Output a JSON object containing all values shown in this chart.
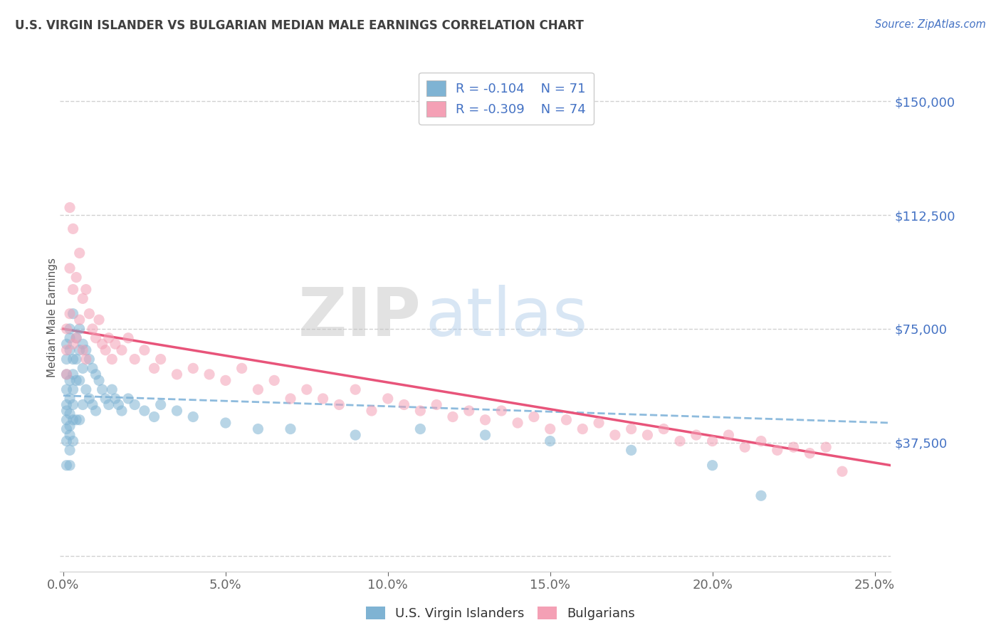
{
  "title": "U.S. VIRGIN ISLANDER VS BULGARIAN MEDIAN MALE EARNINGS CORRELATION CHART",
  "source": "Source: ZipAtlas.com",
  "ylabel": "Median Male Earnings",
  "xlim": [
    -0.001,
    0.255
  ],
  "ylim": [
    -5000,
    162500
  ],
  "xtick_labels": [
    "0.0%",
    "5.0%",
    "10.0%",
    "15.0%",
    "20.0%",
    "25.0%"
  ],
  "xtick_values": [
    0.0,
    0.05,
    0.1,
    0.15,
    0.2,
    0.25
  ],
  "ytick_values": [
    0,
    37500,
    75000,
    112500,
    150000
  ],
  "ytick_labels": [
    "",
    "$37,500",
    "$75,000",
    "$112,500",
    "$150,000"
  ],
  "color_blue": "#7fb3d3",
  "color_pink": "#f4a0b5",
  "color_blue_line": "#3a7abf",
  "color_pink_line": "#e8547a",
  "color_blue_line_dash": "#7ab0d8",
  "R_blue": -0.104,
  "N_blue": 71,
  "R_pink": -0.309,
  "N_pink": 74,
  "watermark_zip": "ZIP",
  "watermark_atlas": "atlas",
  "background_color": "#ffffff",
  "grid_color": "#cccccc",
  "title_color": "#404040",
  "axis_label_color": "#4472c4",
  "legend_label1": "U.S. Virgin Islanders",
  "legend_label2": "Bulgarians",
  "blue_scatter_x": [
    0.001,
    0.001,
    0.001,
    0.001,
    0.001,
    0.001,
    0.001,
    0.001,
    0.001,
    0.001,
    0.002,
    0.002,
    0.002,
    0.002,
    0.002,
    0.002,
    0.002,
    0.002,
    0.002,
    0.002,
    0.003,
    0.003,
    0.003,
    0.003,
    0.003,
    0.003,
    0.003,
    0.004,
    0.004,
    0.004,
    0.004,
    0.005,
    0.005,
    0.005,
    0.005,
    0.006,
    0.006,
    0.006,
    0.007,
    0.007,
    0.008,
    0.008,
    0.009,
    0.009,
    0.01,
    0.01,
    0.011,
    0.012,
    0.013,
    0.014,
    0.015,
    0.016,
    0.017,
    0.018,
    0.02,
    0.022,
    0.025,
    0.028,
    0.03,
    0.035,
    0.04,
    0.05,
    0.06,
    0.07,
    0.09,
    0.11,
    0.13,
    0.15,
    0.175,
    0.2,
    0.215
  ],
  "blue_scatter_y": [
    55000,
    65000,
    70000,
    60000,
    48000,
    42000,
    38000,
    30000,
    50000,
    45000,
    75000,
    68000,
    72000,
    58000,
    52000,
    47000,
    43000,
    40000,
    35000,
    30000,
    80000,
    65000,
    60000,
    55000,
    50000,
    45000,
    38000,
    72000,
    65000,
    58000,
    45000,
    75000,
    68000,
    58000,
    45000,
    70000,
    62000,
    50000,
    68000,
    55000,
    65000,
    52000,
    62000,
    50000,
    60000,
    48000,
    58000,
    55000,
    52000,
    50000,
    55000,
    52000,
    50000,
    48000,
    52000,
    50000,
    48000,
    46000,
    50000,
    48000,
    46000,
    44000,
    42000,
    42000,
    40000,
    42000,
    40000,
    38000,
    35000,
    30000,
    20000
  ],
  "pink_scatter_x": [
    0.001,
    0.001,
    0.001,
    0.002,
    0.002,
    0.002,
    0.003,
    0.003,
    0.003,
    0.004,
    0.004,
    0.005,
    0.005,
    0.006,
    0.006,
    0.007,
    0.007,
    0.008,
    0.009,
    0.01,
    0.011,
    0.012,
    0.013,
    0.014,
    0.015,
    0.016,
    0.018,
    0.02,
    0.022,
    0.025,
    0.028,
    0.03,
    0.035,
    0.04,
    0.045,
    0.05,
    0.055,
    0.06,
    0.065,
    0.07,
    0.075,
    0.08,
    0.085,
    0.09,
    0.095,
    0.1,
    0.105,
    0.11,
    0.115,
    0.12,
    0.125,
    0.13,
    0.135,
    0.14,
    0.145,
    0.15,
    0.155,
    0.16,
    0.165,
    0.17,
    0.175,
    0.18,
    0.185,
    0.19,
    0.195,
    0.2,
    0.205,
    0.21,
    0.215,
    0.22,
    0.225,
    0.23,
    0.235,
    0.24
  ],
  "pink_scatter_y": [
    75000,
    68000,
    60000,
    115000,
    95000,
    80000,
    108000,
    88000,
    70000,
    92000,
    72000,
    100000,
    78000,
    85000,
    68000,
    88000,
    65000,
    80000,
    75000,
    72000,
    78000,
    70000,
    68000,
    72000,
    65000,
    70000,
    68000,
    72000,
    65000,
    68000,
    62000,
    65000,
    60000,
    62000,
    60000,
    58000,
    62000,
    55000,
    58000,
    52000,
    55000,
    52000,
    50000,
    55000,
    48000,
    52000,
    50000,
    48000,
    50000,
    46000,
    48000,
    45000,
    48000,
    44000,
    46000,
    42000,
    45000,
    42000,
    44000,
    40000,
    42000,
    40000,
    42000,
    38000,
    40000,
    38000,
    40000,
    36000,
    38000,
    35000,
    36000,
    34000,
    36000,
    28000
  ],
  "blue_trendline_x": [
    0.0,
    0.255
  ],
  "blue_trendline_y": [
    53000,
    44000
  ],
  "pink_trendline_x": [
    0.0,
    0.255
  ],
  "pink_trendline_y": [
    75000,
    30000
  ]
}
